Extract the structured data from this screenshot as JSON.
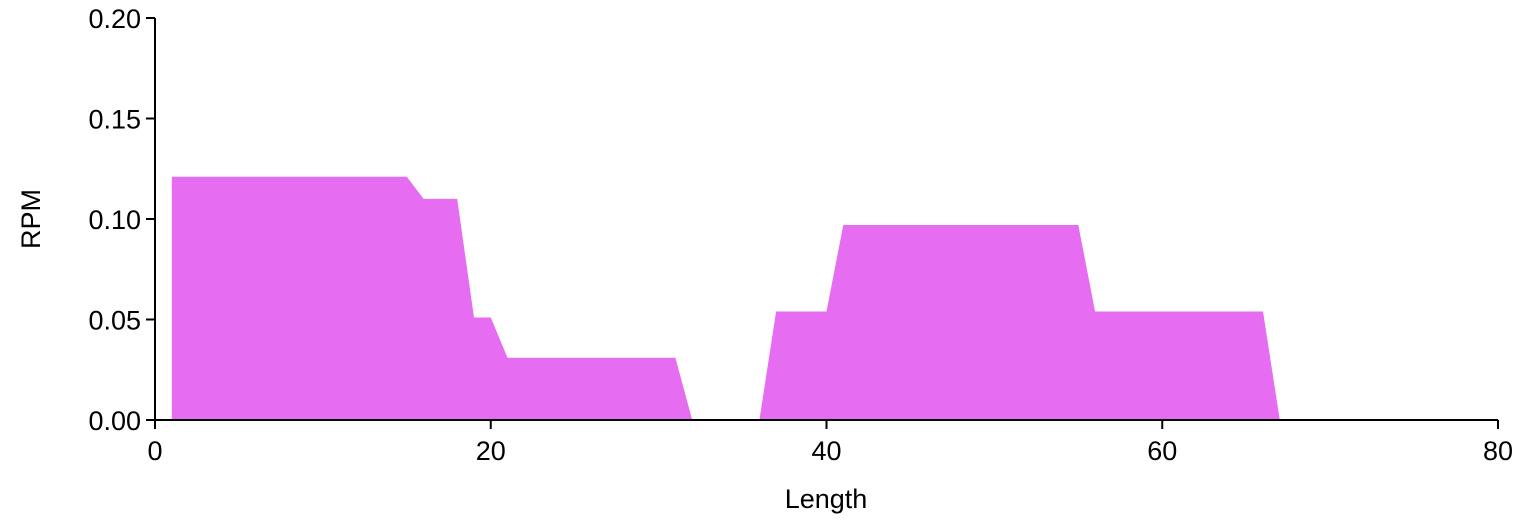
{
  "chart_data": {
    "type": "area",
    "title": "",
    "xlabel": "Length",
    "ylabel": "RPM",
    "xlim": [
      0,
      80
    ],
    "ylim": [
      0,
      0.2
    ],
    "x_ticks": [
      "0",
      "20",
      "40",
      "60",
      "80"
    ],
    "y_ticks": [
      "0.00",
      "0.05",
      "0.10",
      "0.15",
      "0.20"
    ],
    "grid": false,
    "legend": "none",
    "fill_color": "#e66cf2",
    "series": [
      {
        "x": [
          1,
          1,
          15,
          16,
          18,
          19,
          20,
          21,
          31,
          32,
          36,
          37,
          40,
          41,
          55,
          56,
          66,
          67
        ],
        "y": [
          0,
          0.121,
          0.121,
          0.11,
          0.11,
          0.051,
          0.051,
          0.031,
          0.031,
          0,
          0,
          0.054,
          0.054,
          0.097,
          0.097,
          0.054,
          0.054,
          0
        ]
      }
    ]
  }
}
